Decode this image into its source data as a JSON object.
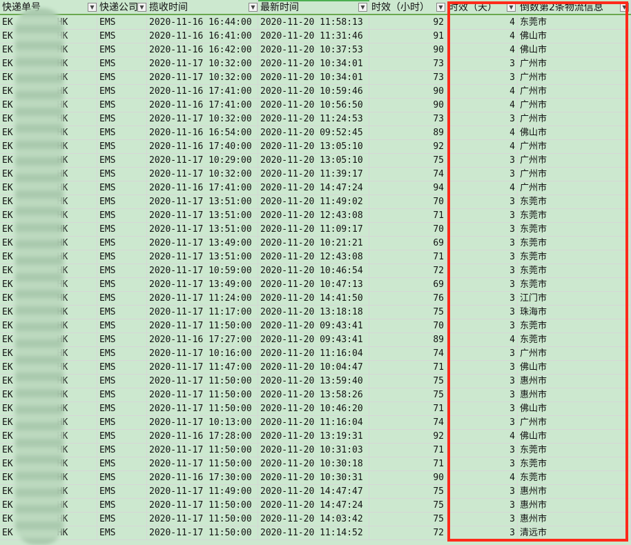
{
  "sheet": {
    "headers": [
      "快递单号",
      "快递公司",
      "揽收时间",
      "最新时间",
      "时效（小时）",
      "时效（天）",
      "倒数第2条物流信息"
    ],
    "filter_icons": [
      "dropdown",
      "dropdown",
      "dropdown",
      "filter-active",
      "dropdown",
      "filter-active",
      "filter-active"
    ],
    "tracking_prefix": "EK",
    "tracking_suffix": "HK",
    "rows": [
      [
        "EMS",
        "2020-11-16 16:44:00",
        "2020-11-20 11:58:13",
        "92",
        "4",
        "东莞市"
      ],
      [
        "EMS",
        "2020-11-16 16:41:00",
        "2020-11-20 11:31:46",
        "91",
        "4",
        "佛山市"
      ],
      [
        "EMS",
        "2020-11-16 16:42:00",
        "2020-11-20 10:37:53",
        "90",
        "4",
        "佛山市"
      ],
      [
        "EMS",
        "2020-11-17 10:32:00",
        "2020-11-20 10:34:01",
        "73",
        "3",
        "广州市"
      ],
      [
        "EMS",
        "2020-11-17 10:32:00",
        "2020-11-20 10:34:01",
        "73",
        "3",
        "广州市"
      ],
      [
        "EMS",
        "2020-11-16 17:41:00",
        "2020-11-20 10:59:46",
        "90",
        "4",
        "广州市"
      ],
      [
        "EMS",
        "2020-11-16 17:41:00",
        "2020-11-20 10:56:50",
        "90",
        "4",
        "广州市"
      ],
      [
        "EMS",
        "2020-11-17 10:32:00",
        "2020-11-20 11:24:53",
        "73",
        "3",
        "广州市"
      ],
      [
        "EMS",
        "2020-11-16 16:54:00",
        "2020-11-20 09:52:45",
        "89",
        "4",
        "佛山市"
      ],
      [
        "EMS",
        "2020-11-16 17:40:00",
        "2020-11-20 13:05:10",
        "92",
        "4",
        "广州市"
      ],
      [
        "EMS",
        "2020-11-17 10:29:00",
        "2020-11-20 13:05:10",
        "75",
        "3",
        "广州市"
      ],
      [
        "EMS",
        "2020-11-17 10:32:00",
        "2020-11-20 11:39:17",
        "74",
        "3",
        "广州市"
      ],
      [
        "EMS",
        "2020-11-16 17:41:00",
        "2020-11-20 14:47:24",
        "94",
        "4",
        "广州市"
      ],
      [
        "EMS",
        "2020-11-17 13:51:00",
        "2020-11-20 11:49:02",
        "70",
        "3",
        "东莞市"
      ],
      [
        "EMS",
        "2020-11-17 13:51:00",
        "2020-11-20 12:43:08",
        "71",
        "3",
        "东莞市"
      ],
      [
        "EMS",
        "2020-11-17 13:51:00",
        "2020-11-20 11:09:17",
        "70",
        "3",
        "东莞市"
      ],
      [
        "EMS",
        "2020-11-17 13:49:00",
        "2020-11-20 10:21:21",
        "69",
        "3",
        "东莞市"
      ],
      [
        "EMS",
        "2020-11-17 13:51:00",
        "2020-11-20 12:43:08",
        "71",
        "3",
        "东莞市"
      ],
      [
        "EMS",
        "2020-11-17 10:59:00",
        "2020-11-20 10:46:54",
        "72",
        "3",
        "东莞市"
      ],
      [
        "EMS",
        "2020-11-17 13:49:00",
        "2020-11-20 10:47:13",
        "69",
        "3",
        "东莞市"
      ],
      [
        "EMS",
        "2020-11-17 11:24:00",
        "2020-11-20 14:41:50",
        "76",
        "3",
        "江门市"
      ],
      [
        "EMS",
        "2020-11-17 11:17:00",
        "2020-11-20 13:18:18",
        "75",
        "3",
        "珠海市"
      ],
      [
        "EMS",
        "2020-11-17 11:50:00",
        "2020-11-20 09:43:41",
        "70",
        "3",
        "东莞市"
      ],
      [
        "EMS",
        "2020-11-16 17:27:00",
        "2020-11-20 09:43:41",
        "89",
        "4",
        "东莞市"
      ],
      [
        "EMS",
        "2020-11-17 10:16:00",
        "2020-11-20 11:16:04",
        "74",
        "3",
        "广州市"
      ],
      [
        "EMS",
        "2020-11-17 11:47:00",
        "2020-11-20 10:04:47",
        "71",
        "3",
        "佛山市"
      ],
      [
        "EMS",
        "2020-11-17 11:50:00",
        "2020-11-20 13:59:40",
        "75",
        "3",
        "惠州市"
      ],
      [
        "EMS",
        "2020-11-17 11:50:00",
        "2020-11-20 13:58:26",
        "75",
        "3",
        "惠州市"
      ],
      [
        "EMS",
        "2020-11-17 11:50:00",
        "2020-11-20 10:46:20",
        "71",
        "3",
        "佛山市"
      ],
      [
        "EMS",
        "2020-11-17 10:13:00",
        "2020-11-20 11:16:04",
        "74",
        "3",
        "广州市"
      ],
      [
        "EMS",
        "2020-11-16 17:28:00",
        "2020-11-20 13:19:31",
        "92",
        "4",
        "佛山市"
      ],
      [
        "EMS",
        "2020-11-17 11:50:00",
        "2020-11-20 10:31:03",
        "71",
        "3",
        "东莞市"
      ],
      [
        "EMS",
        "2020-11-17 11:50:00",
        "2020-11-20 10:30:18",
        "71",
        "3",
        "东莞市"
      ],
      [
        "EMS",
        "2020-11-16 17:30:00",
        "2020-11-20 10:30:31",
        "90",
        "4",
        "东莞市"
      ],
      [
        "EMS",
        "2020-11-17 11:49:00",
        "2020-11-20 14:47:47",
        "75",
        "3",
        "惠州市"
      ],
      [
        "EMS",
        "2020-11-17 11:50:00",
        "2020-11-20 14:47:24",
        "75",
        "3",
        "惠州市"
      ],
      [
        "EMS",
        "2020-11-17 11:50:00",
        "2020-11-20 14:03:42",
        "75",
        "3",
        "惠州市"
      ],
      [
        "EMS",
        "2020-11-17 11:50:00",
        "2020-11-20 11:14:52",
        "72",
        "3",
        "清远市"
      ]
    ]
  },
  "colors": {
    "cell_bg": "#cce8cf",
    "highlight_box": "#ff2a1a",
    "gridline": "#d6d6d6"
  }
}
